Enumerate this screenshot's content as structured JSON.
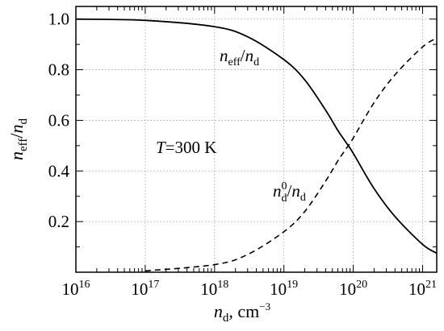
{
  "chart_data": {
    "type": "line",
    "x_scale": "log",
    "xlim": [
      1e+16,
      1.6e+21
    ],
    "ylim": [
      0,
      1.05
    ],
    "grid": true,
    "x_ticks": [
      {
        "base": "10",
        "exp": "16"
      },
      {
        "base": "10",
        "exp": "17"
      },
      {
        "base": "10",
        "exp": "18"
      },
      {
        "base": "10",
        "exp": "19"
      },
      {
        "base": "10",
        "exp": "20"
      },
      {
        "base": "10",
        "exp": "21"
      }
    ],
    "y_ticks": [
      "0.2",
      "0.4",
      "0.6",
      "0.8",
      "1.0"
    ],
    "xlabel": {
      "main": "n",
      "sub": "d",
      "rest": ", cm",
      "sup": "−3"
    },
    "ylabel": {
      "main": "n",
      "sub1": "eff",
      "sep": "/",
      "main2": "n",
      "sub2": "d"
    },
    "annotation": {
      "main": "T",
      "rest": "=300 K"
    },
    "series": [
      {
        "label": {
          "main": "n",
          "sub": "eff",
          "sep": "/",
          "main2": "n",
          "sub2": "d"
        },
        "style": "solid",
        "x": [
          1e+16,
          1e+17,
          1e+18,
          3e+18,
          1e+19,
          2e+19,
          4e+19,
          6e+19,
          8e+19,
          1e+20,
          2e+20,
          4e+20,
          1e+21,
          1.6e+21
        ],
        "y": [
          1.0,
          0.995,
          0.97,
          0.93,
          0.84,
          0.76,
          0.64,
          0.56,
          0.51,
          0.47,
          0.33,
          0.22,
          0.11,
          0.075
        ]
      },
      {
        "label": {
          "main": "n",
          "sub": "d",
          "sup": "0",
          "sep": "/",
          "main2": "n",
          "sub2": "d"
        },
        "style": "dashed",
        "x": [
          1e+17,
          1e+18,
          3e+18,
          1e+19,
          2e+19,
          4e+19,
          6e+19,
          8e+19,
          1e+20,
          2e+20,
          4e+20,
          1e+21,
          1.6e+21
        ],
        "y": [
          0.005,
          0.03,
          0.07,
          0.16,
          0.24,
          0.36,
          0.44,
          0.49,
          0.53,
          0.67,
          0.78,
          0.89,
          0.925
        ]
      }
    ]
  }
}
